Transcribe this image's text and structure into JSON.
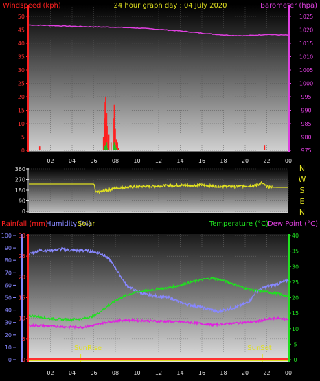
{
  "chart_data": [
    {
      "type": "line",
      "title": "24 hour graph day : 04 July 2020",
      "ylabel_left": "Windspeed (kph)",
      "ylabel_right": "Barometer (hpa)",
      "x_ticks": [
        "02",
        "04",
        "06",
        "08",
        "10",
        "12",
        "14",
        "16",
        "18",
        "20",
        "22",
        "00"
      ],
      "x_range_hours": [
        0,
        24
      ],
      "ylim_left": [
        0,
        50
      ],
      "ylim_right": [
        975,
        1025
      ],
      "yticks_left": [
        0,
        5,
        10,
        15,
        20,
        25,
        30,
        35,
        40,
        45,
        50
      ],
      "yticks_right": [
        975,
        980,
        985,
        990,
        995,
        1000,
        1005,
        1010,
        1015,
        1020,
        1025
      ],
      "series": [
        {
          "name": "Barometer (hpa)",
          "axis": "right",
          "color": "#e040e0",
          "x": [
            0,
            2,
            4,
            6,
            8,
            10,
            12,
            14,
            15,
            16,
            17,
            18,
            19,
            20,
            21,
            22,
            23,
            24
          ],
          "values": [
            1021.8,
            1021.6,
            1021.3,
            1021.1,
            1021.0,
            1020.7,
            1020.2,
            1019.6,
            1019.2,
            1018.8,
            1018.4,
            1018.1,
            1017.9,
            1017.8,
            1018.0,
            1018.3,
            1018.1,
            1018.0
          ]
        },
        {
          "name": "Windspeed",
          "axis": "left",
          "color": "#ff2020",
          "style": "bars",
          "x": [
            1.0,
            6.9,
            7.0,
            7.05,
            7.1,
            7.2,
            7.3,
            7.4,
            7.6,
            7.8,
            7.9,
            8.0,
            8.1,
            8.2,
            8.3,
            21.8
          ],
          "values": [
            1.5,
            5,
            12,
            18,
            20,
            14,
            9,
            6,
            3,
            12,
            17,
            8,
            4,
            3,
            1,
            2
          ]
        },
        {
          "name": "Gust",
          "axis": "left",
          "color": "#20c020",
          "style": "bars",
          "x": [
            7.0,
            7.1,
            7.2,
            7.3,
            7.8,
            7.9,
            8.0,
            8.1
          ],
          "values": [
            1.5,
            2,
            3,
            1,
            2,
            3,
            2,
            1
          ]
        }
      ]
    },
    {
      "type": "line",
      "title": "",
      "ylabel_right": "",
      "compass_labels": [
        "N",
        "W",
        "S",
        "E",
        "N"
      ],
      "x_range_hours": [
        0,
        24
      ],
      "ylim": [
        0,
        360
      ],
      "yticks": [
        0,
        90,
        180,
        270,
        360
      ],
      "series": [
        {
          "name": "Wind direction",
          "color": "#e0e020",
          "x": [
            0,
            1,
            2,
            3,
            4,
            5,
            5.5,
            6.0,
            6.2,
            7,
            8,
            9,
            10,
            11,
            12,
            13,
            14,
            15,
            16,
            17,
            18,
            19,
            20,
            21,
            21.5,
            22,
            22.5,
            23,
            24
          ],
          "values": [
            232,
            232,
            232,
            232,
            232,
            232,
            232,
            232,
            160,
            175,
            195,
            205,
            210,
            212,
            215,
            218,
            222,
            220,
            223,
            215,
            212,
            210,
            215,
            220,
            240,
            210,
            205,
            203,
            203
          ]
        }
      ]
    },
    {
      "type": "line",
      "title": "",
      "legend": {
        "rainfall": "Rainfall (mm)",
        "humidity": "Humidity (%)",
        "solar": "Solar",
        "temperature": "Temperature (°C)",
        "dewpoint": "Dew Point (°C)"
      },
      "annotations": [
        "SunRise",
        "SunSet"
      ],
      "sunrise_hour": 4.8,
      "sunset_hour": 21.6,
      "x_ticks": [
        "02",
        "04",
        "06",
        "08",
        "10",
        "12",
        "14",
        "16",
        "18",
        "20",
        "22",
        "00"
      ],
      "x_range_hours": [
        0,
        24
      ],
      "ylim_humidity": [
        0,
        100
      ],
      "ylim_rain": [
        0,
        30
      ],
      "ylim_temp": [
        0,
        40
      ],
      "yticks_humidity": [
        0,
        10,
        20,
        30,
        40,
        50,
        60,
        70,
        80,
        90,
        100
      ],
      "yticks_rain": [
        0,
        5,
        10,
        15,
        20,
        25,
        30
      ],
      "yticks_temp": [
        0,
        5,
        10,
        15,
        20,
        25,
        30,
        35,
        40
      ],
      "series": [
        {
          "name": "Humidity (%)",
          "axis": "humidity",
          "color": "#8888ff",
          "x": [
            0,
            1,
            2,
            3,
            4,
            5,
            6,
            6.5,
            7,
            7.5,
            8,
            8.5,
            9,
            10,
            11,
            12,
            13,
            14,
            15,
            16,
            17,
            17.5,
            18,
            19,
            20,
            20.5,
            21,
            22,
            23,
            24
          ],
          "values": [
            85,
            88,
            88,
            89,
            88,
            88,
            87,
            86,
            84,
            80,
            74,
            67,
            60,
            55,
            52,
            51,
            50,
            46,
            44,
            42,
            40,
            38,
            40,
            42,
            45,
            48,
            55,
            59,
            61,
            64
          ]
        },
        {
          "name": "Temperature (°C)",
          "axis": "temp",
          "color": "#20e020",
          "x": [
            0,
            1,
            2,
            3,
            4,
            5,
            6,
            7,
            8,
            9,
            10,
            11,
            12,
            13,
            14,
            15,
            16,
            17,
            18,
            19,
            20,
            21,
            22,
            23,
            24
          ],
          "values": [
            14.2,
            13.8,
            13.2,
            13.0,
            13.0,
            13.2,
            14.0,
            16.5,
            19.0,
            20.8,
            21.8,
            22.3,
            22.8,
            23.2,
            24.0,
            25.0,
            25.8,
            26.2,
            25.5,
            24.3,
            23.0,
            22.3,
            21.8,
            21.3,
            20.3
          ]
        },
        {
          "name": "Dew Point (°C)",
          "axis": "temp",
          "color": "#e020e0",
          "x": [
            0,
            1,
            2,
            3,
            4,
            5,
            6,
            7,
            8,
            9,
            10,
            11,
            12,
            13,
            14,
            15,
            16,
            17,
            18,
            19,
            20,
            21,
            22,
            23,
            24
          ],
          "values": [
            11.0,
            11.0,
            10.8,
            10.6,
            10.5,
            10.5,
            11.0,
            12.0,
            12.5,
            12.8,
            12.6,
            12.5,
            12.4,
            12.3,
            12.2,
            12.0,
            11.6,
            11.2,
            11.5,
            11.8,
            12.0,
            12.3,
            13.0,
            13.3,
            13.0
          ]
        },
        {
          "name": "Rainfall (mm)",
          "axis": "rain",
          "color": "#ff3030",
          "x": [
            0,
            24
          ],
          "values": [
            0,
            0
          ]
        },
        {
          "name": "Solar",
          "axis": "humidity",
          "color": "#e0e020",
          "x": [
            0,
            24
          ],
          "values": [
            0.5,
            0.5
          ]
        }
      ]
    }
  ],
  "colors": {
    "windspeed": "#ff2020",
    "barometer": "#e040e0",
    "humidity": "#8888ff",
    "temperature": "#20e020",
    "dewpoint": "#e020e0",
    "solar": "#e0e020",
    "direction": "#e0e020",
    "title": "#e0e020",
    "axis": "#e0e0e0"
  }
}
